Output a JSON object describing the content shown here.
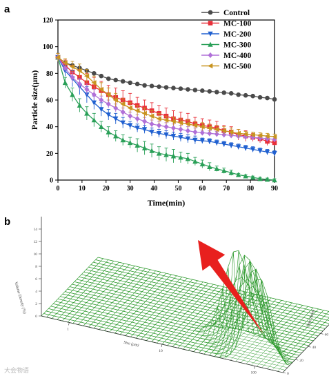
{
  "panel_a_label": "a",
  "panel_b_label": "b",
  "watermark": "大会物语",
  "chart_data": [
    {
      "type": "line",
      "xlabel": "Time(min)",
      "ylabel": "Particle size(μm)",
      "xlim": [
        0,
        90
      ],
      "ylim": [
        0,
        120
      ],
      "xticks": [
        "0",
        "10",
        "20",
        "30",
        "40",
        "50",
        "60",
        "70",
        "80",
        "90"
      ],
      "yticks": [
        "0",
        "20",
        "40",
        "60",
        "80",
        "100",
        "120"
      ],
      "legend_position": "top-right",
      "x": [
        0,
        3,
        6,
        9,
        12,
        15,
        18,
        21,
        24,
        27,
        30,
        33,
        36,
        39,
        42,
        45,
        48,
        51,
        54,
        57,
        60,
        63,
        66,
        69,
        72,
        75,
        78,
        81,
        84,
        87,
        90
      ],
      "series": [
        {
          "name": "Control",
          "color": "#4a4a4a",
          "marker": "circle",
          "values": [
            92,
            88,
            86,
            84,
            82,
            80,
            78,
            76,
            75,
            74,
            73,
            72,
            71,
            70.5,
            70,
            69.5,
            69,
            68.5,
            68,
            67.5,
            67,
            66.5,
            66,
            65.5,
            65,
            64,
            63.5,
            63,
            62,
            61.5,
            60.5
          ]
        },
        {
          "name": "MC-100",
          "color": "#e8303a",
          "marker": "square",
          "values": [
            92,
            86,
            81,
            77,
            73,
            70,
            67,
            64,
            62,
            60,
            58,
            56,
            54,
            52,
            50,
            48,
            46,
            45,
            44,
            42,
            41,
            40,
            39,
            37,
            36,
            34,
            33,
            32,
            31,
            29,
            28
          ],
          "errors": [
            3,
            4,
            5,
            6,
            7,
            7,
            7,
            7,
            7,
            7,
            7,
            6,
            6,
            6,
            6,
            6,
            6,
            6,
            6,
            5,
            5,
            5,
            5,
            4,
            4,
            4,
            4,
            3,
            3,
            3,
            2
          ]
        },
        {
          "name": "MC-200",
          "color": "#2060d0",
          "marker": "triangle-down",
          "values": [
            92,
            82,
            76,
            70,
            64,
            58,
            53,
            49,
            46,
            43,
            41,
            39,
            38,
            36,
            35,
            34,
            33,
            32,
            31,
            30,
            29.5,
            29,
            28,
            27,
            26,
            25,
            24,
            23,
            22,
            21,
            20
          ],
          "errors": [
            3,
            4,
            6,
            6,
            6,
            5,
            5,
            4,
            4,
            4,
            3,
            3,
            3,
            3,
            3,
            3,
            3,
            3,
            3,
            3,
            2,
            2,
            2,
            2,
            2,
            2,
            2,
            2,
            2,
            2,
            2
          ]
        },
        {
          "name": "MC-300",
          "color": "#2aa058",
          "marker": "triangle",
          "values": [
            92,
            73,
            64,
            56,
            50,
            45,
            40,
            36,
            33,
            30,
            28,
            26,
            24,
            22,
            20,
            19,
            18,
            17,
            16,
            14,
            12,
            10,
            8.5,
            7,
            5.5,
            4,
            3,
            2,
            1,
            0.5,
            0
          ],
          "errors": [
            3,
            4,
            5,
            5,
            5,
            5,
            4,
            4,
            4,
            4,
            4,
            5,
            5,
            5,
            5,
            5,
            5,
            4,
            4,
            3,
            3,
            3,
            2,
            2,
            2,
            1,
            1,
            1,
            1,
            1,
            1
          ]
        },
        {
          "name": "MC-400",
          "color": "#b070d8",
          "marker": "diamond",
          "values": [
            92,
            84,
            77,
            72,
            68,
            64,
            60,
            57,
            54,
            51,
            48,
            46,
            44,
            42,
            41,
            40,
            39,
            38,
            37,
            36,
            35.5,
            35,
            34.5,
            34,
            33.5,
            33,
            32.5,
            32,
            31.5,
            31,
            30.5
          ],
          "errors": [
            3,
            3,
            4,
            4,
            4,
            4,
            3,
            3,
            3,
            3,
            3,
            3,
            3,
            3,
            3,
            3,
            3,
            3,
            3,
            3,
            2,
            2,
            2,
            2,
            2,
            2,
            2,
            2,
            2,
            2,
            2
          ]
        },
        {
          "name": "MC-500",
          "color": "#c89420",
          "marker": "triangle-left",
          "values": [
            92,
            88,
            85,
            82,
            78,
            73,
            68,
            64,
            60,
            57,
            54,
            52,
            50,
            48,
            46,
            45,
            44,
            43,
            42,
            41,
            40,
            39,
            38,
            37,
            36,
            35,
            34.5,
            34,
            33.5,
            33,
            32.5
          ],
          "errors": [
            3,
            3,
            4,
            5,
            5,
            5,
            5,
            5,
            5,
            4,
            4,
            4,
            4,
            4,
            4,
            3,
            3,
            3,
            3,
            3,
            3,
            3,
            3,
            3,
            3,
            3,
            2,
            2,
            2,
            2,
            2
          ]
        }
      ]
    },
    {
      "type": "surface",
      "color": "#2e9a2e",
      "zlabel": "Volume Density (%)",
      "xlabel": "Size (μm)",
      "ylabel": "Time (min)",
      "size_ticks": [
        "1",
        "10",
        "100"
      ],
      "time_ticks": [
        "0",
        "20",
        "40",
        "60",
        "80"
      ],
      "density_ticks": [
        "0",
        "2",
        "4",
        "6",
        "8",
        "10",
        "12",
        "14"
      ],
      "arrow_color": "#e8201e",
      "peak_time_rows": [
        0,
        2,
        4,
        6,
        8
      ],
      "peak_size_log10": [
        2.05,
        1.95,
        1.85,
        1.75,
        1.6
      ],
      "peak_height": [
        14,
        14,
        14,
        14,
        14
      ]
    }
  ]
}
